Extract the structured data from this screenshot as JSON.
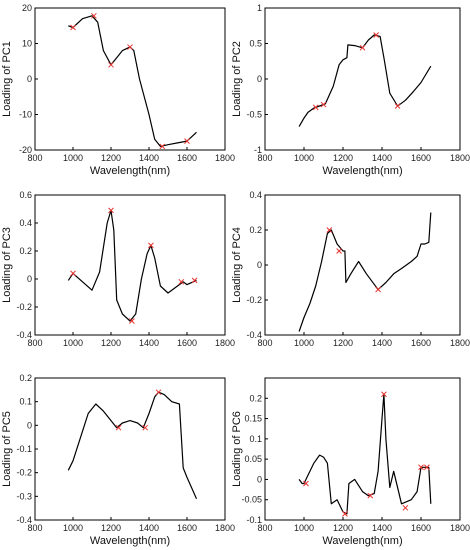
{
  "chart_data": [
    {
      "type": "line",
      "xlabel": "Wavelength(nm)",
      "ylabel": "Loading of PC1",
      "xlim": [
        800,
        1800
      ],
      "ylim": [
        -20,
        20
      ],
      "xticks": [
        800,
        1000,
        1200,
        1400,
        1600,
        1800
      ],
      "yticks": [
        -20,
        -10,
        0,
        10,
        20
      ],
      "x": [
        975,
        1000,
        1050,
        1100,
        1130,
        1160,
        1200,
        1230,
        1260,
        1300,
        1320,
        1350,
        1400,
        1430,
        1460,
        1500,
        1550,
        1600,
        1650
      ],
      "y": [
        15,
        14.5,
        17,
        17.8,
        16,
        8,
        4,
        6,
        8,
        9,
        8,
        0,
        -10,
        -17,
        -19,
        -18.5,
        -18,
        -17.5,
        -15
      ],
      "marker_x": [
        1000,
        1110,
        1200,
        1300,
        1470,
        1600
      ],
      "marker_y": [
        14.5,
        17.8,
        4,
        9,
        -19,
        -17.5
      ]
    },
    {
      "type": "line",
      "xlabel": "Wavelength(nm)",
      "ylabel": "Loading of PC2",
      "xlim": [
        800,
        1800
      ],
      "ylim": [
        -1,
        1
      ],
      "xticks": [
        800,
        1000,
        1200,
        1400,
        1600,
        1800
      ],
      "yticks": [
        -1,
        -0.5,
        0,
        0.5,
        1
      ],
      "x": [
        975,
        1000,
        1020,
        1050,
        1080,
        1110,
        1150,
        1180,
        1200,
        1220,
        1225,
        1260,
        1300,
        1330,
        1360,
        1390,
        1410,
        1440,
        1480,
        1520,
        1560,
        1600,
        1650
      ],
      "y": [
        -0.67,
        -0.55,
        -0.47,
        -0.41,
        -0.38,
        -0.35,
        -0.1,
        0.2,
        0.27,
        0.3,
        0.48,
        0.47,
        0.44,
        0.55,
        0.62,
        0.6,
        0.3,
        -0.2,
        -0.38,
        -0.3,
        -0.18,
        -0.05,
        0.18
      ],
      "marker_x": [
        1060,
        1100,
        1300,
        1370,
        1480
      ],
      "marker_y": [
        -0.4,
        -0.36,
        0.44,
        0.62,
        -0.38
      ]
    },
    {
      "type": "line",
      "xlabel": "",
      "ylabel": "Loading of PC3",
      "xlim": [
        800,
        1800
      ],
      "ylim": [
        -0.4,
        0.6
      ],
      "xticks": [
        800,
        1000,
        1200,
        1400,
        1600,
        1800
      ],
      "yticks": [
        -0.4,
        -0.2,
        0,
        0.2,
        0.4,
        0.6
      ],
      "x": [
        975,
        1000,
        1050,
        1100,
        1140,
        1180,
        1200,
        1215,
        1230,
        1260,
        1300,
        1330,
        1360,
        1390,
        1410,
        1430,
        1460,
        1500,
        1550,
        1580,
        1600,
        1650
      ],
      "y": [
        -0.01,
        0.04,
        -0.02,
        -0.08,
        0.05,
        0.4,
        0.49,
        0.35,
        -0.15,
        -0.25,
        -0.3,
        -0.25,
        0.0,
        0.18,
        0.24,
        0.15,
        -0.05,
        -0.1,
        -0.05,
        -0.02,
        -0.04,
        -0.01
      ],
      "marker_x": [
        1000,
        1200,
        1310,
        1410,
        1570,
        1640
      ],
      "marker_y": [
        0.04,
        0.49,
        -0.3,
        0.24,
        -0.02,
        -0.01
      ]
    },
    {
      "type": "line",
      "xlabel": "",
      "ylabel": "Loading of PC4",
      "xlim": [
        800,
        1800
      ],
      "ylim": [
        -0.4,
        0.4
      ],
      "xticks": [
        800,
        1000,
        1200,
        1400,
        1600,
        1800
      ],
      "yticks": [
        -0.4,
        -0.2,
        0,
        0.2,
        0.4
      ],
      "x": [
        975,
        1000,
        1030,
        1060,
        1090,
        1120,
        1140,
        1170,
        1200,
        1210,
        1215,
        1240,
        1280,
        1320,
        1360,
        1380,
        1420,
        1460,
        1500,
        1550,
        1580,
        1600,
        1620,
        1640,
        1650
      ],
      "y": [
        -0.38,
        -0.3,
        -0.22,
        -0.12,
        0.02,
        0.18,
        0.2,
        0.12,
        0.08,
        0.08,
        -0.1,
        -0.05,
        0.02,
        -0.05,
        -0.11,
        -0.14,
        -0.1,
        -0.05,
        -0.02,
        0.02,
        0.05,
        0.12,
        0.12,
        0.13,
        0.3
      ],
      "marker_x": [
        1130,
        1180,
        1380
      ],
      "marker_y": [
        0.2,
        0.08,
        -0.14
      ]
    },
    {
      "type": "line",
      "xlabel": "Wavelength(nm)",
      "ylabel": "Loading of PC5",
      "xlim": [
        800,
        1800
      ],
      "ylim": [
        -0.4,
        0.2
      ],
      "xticks": [
        800,
        1000,
        1200,
        1400,
        1600,
        1800
      ],
      "yticks": [
        -0.4,
        -0.3,
        -0.2,
        -0.1,
        0,
        0.1,
        0.2
      ],
      "x": [
        975,
        1000,
        1040,
        1080,
        1120,
        1160,
        1200,
        1230,
        1260,
        1300,
        1340,
        1370,
        1400,
        1430,
        1450,
        1480,
        1520,
        1560,
        1580,
        1600,
        1650
      ],
      "y": [
        -0.19,
        -0.15,
        -0.05,
        0.05,
        0.09,
        0.06,
        0.02,
        -0.01,
        0.01,
        0.02,
        0.01,
        -0.01,
        0.05,
        0.12,
        0.14,
        0.13,
        0.1,
        0.09,
        -0.18,
        -0.22,
        -0.31
      ],
      "marker_x": [
        1240,
        1380,
        1450
      ],
      "marker_y": [
        -0.01,
        -0.01,
        0.14
      ]
    },
    {
      "type": "line",
      "xlabel": "Wavelength(nm)",
      "ylabel": "Loading of PC6",
      "xlim": [
        800,
        1800
      ],
      "ylim": [
        -0.1,
        0.25
      ],
      "xticks": [
        800,
        1000,
        1200,
        1400,
        1600,
        1800
      ],
      "yticks": [
        -0.1,
        -0.05,
        0,
        0.05,
        0.1,
        0.15,
        0.2
      ],
      "x": [
        975,
        990,
        1000,
        1020,
        1050,
        1080,
        1100,
        1120,
        1140,
        1170,
        1200,
        1220,
        1230,
        1260,
        1300,
        1330,
        1360,
        1380,
        1400,
        1410,
        1420,
        1440,
        1460,
        1500,
        1550,
        1580,
        1600,
        1620,
        1640,
        1650
      ],
      "y": [
        0.0,
        -0.01,
        -0.01,
        0.01,
        0.04,
        0.06,
        0.055,
        0.04,
        -0.06,
        -0.05,
        -0.08,
        -0.085,
        -0.01,
        0.0,
        -0.03,
        -0.04,
        -0.035,
        0.02,
        0.15,
        0.21,
        0.1,
        -0.02,
        0.02,
        -0.06,
        -0.05,
        -0.03,
        0.03,
        0.03,
        0.03,
        -0.06
      ],
      "marker_x": [
        1010,
        1210,
        1340,
        1410,
        1520,
        1600,
        1630
      ],
      "marker_y": [
        -0.01,
        -0.085,
        -0.04,
        0.21,
        -0.07,
        0.03,
        0.03
      ]
    }
  ]
}
